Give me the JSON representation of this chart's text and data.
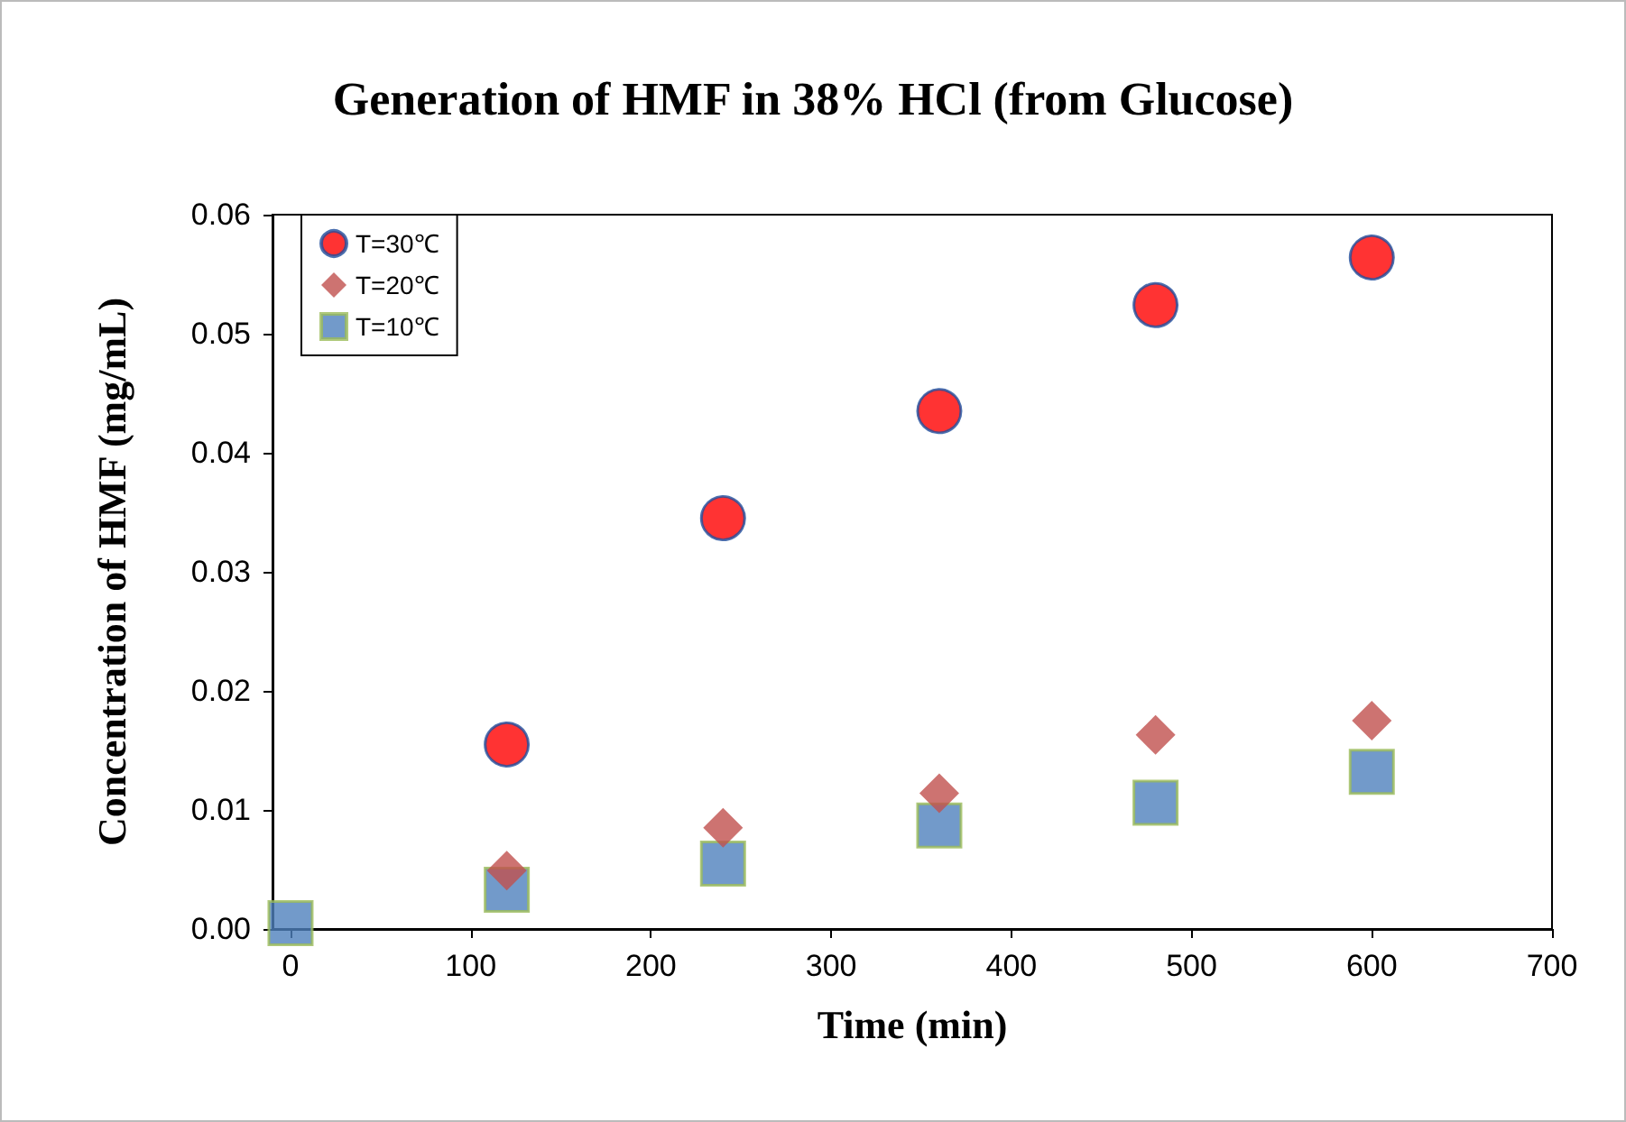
{
  "chart_data": {
    "type": "scatter",
    "title": "Generation of HMF in 38% HCl (from Glucose)",
    "xlabel": "Time (min)",
    "ylabel": "Concentration of HMF (mg/mL)",
    "x": [
      0,
      120,
      240,
      360,
      480,
      600
    ],
    "series": [
      {
        "name": "T=30℃",
        "color": "#ff0000",
        "marker": "circle",
        "values": [
          null,
          0.0155,
          0.0345,
          0.0435,
          0.0524,
          0.0564
        ]
      },
      {
        "name": "T=20℃",
        "color": "#c0504d",
        "marker": "diamond",
        "values": [
          null,
          0.0049,
          0.0085,
          0.0114,
          0.0163,
          0.0175
        ]
      },
      {
        "name": "T=10℃",
        "color": "#4f81bd",
        "marker": "square",
        "values": [
          0.0005,
          0.0033,
          0.0055,
          0.0087,
          0.0106,
          0.0132
        ]
      }
    ],
    "xlim": [
      -10,
      700
    ],
    "xticks": [
      0,
      100,
      200,
      300,
      400,
      500,
      600,
      700
    ],
    "ylim": [
      0,
      0.06
    ],
    "yticks": [
      {
        "value": 0,
        "label": "0.00"
      },
      {
        "value": 0.01,
        "label": "0.01"
      },
      {
        "value": 0.02,
        "label": "0.02"
      },
      {
        "value": 0.03,
        "label": "0.03"
      },
      {
        "value": 0.04,
        "label": "0.04"
      },
      {
        "value": 0.05,
        "label": "0.05"
      },
      {
        "value": 0.06,
        "label": "0.06"
      }
    ],
    "grid": false,
    "legend": "top left"
  }
}
